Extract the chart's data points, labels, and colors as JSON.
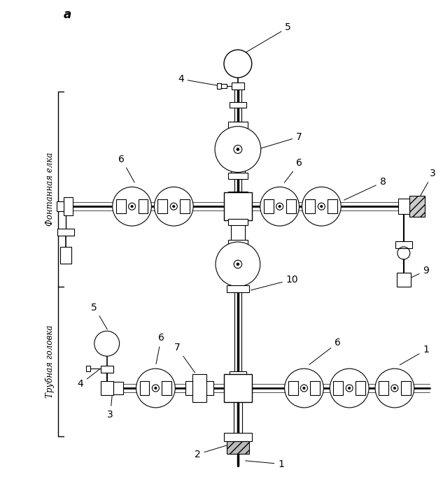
{
  "title_letter": "a",
  "bg_color": "#ffffff",
  "line_color": "#000000",
  "label_fontan": "Фонтанная елка",
  "label_trub": "Трубная головка",
  "figsize": [
    6.33,
    6.85
  ],
  "dpi": 100
}
